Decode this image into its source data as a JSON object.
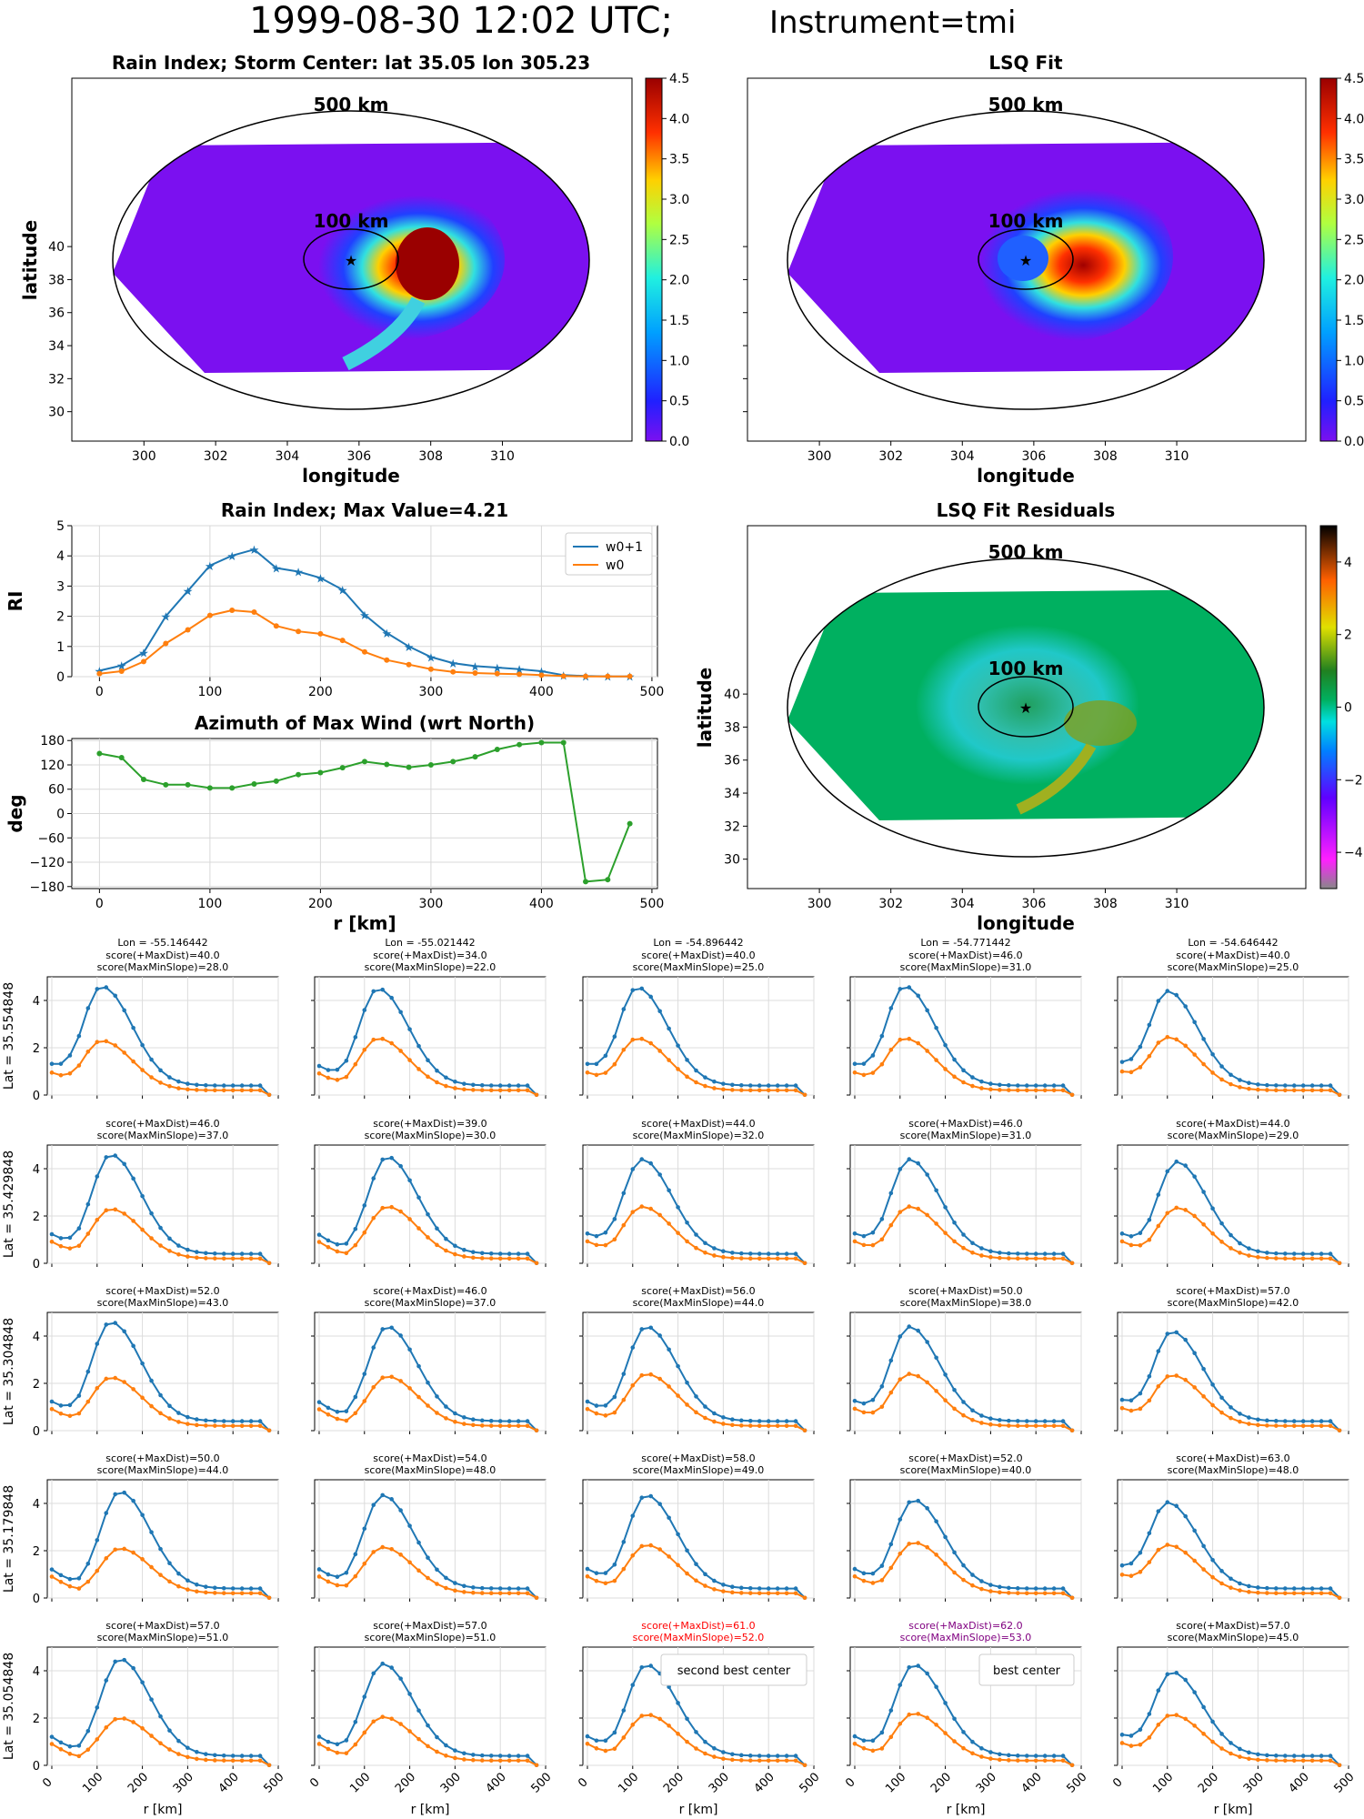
{
  "figure": {
    "title_main": "1999-08-30 12:02 UTC;",
    "title_instrument": "Instrument=tmi"
  },
  "maps": {
    "rain_index": {
      "title": "Rain Index; Storm Center: lat 35.05 lon 305.23",
      "xlabel": "longitude",
      "ylabel": "latitude",
      "colorbar_ticks": [
        "0.0",
        "0.5",
        "1.0",
        "1.5",
        "2.0",
        "2.5",
        "3.0",
        "3.5",
        "4.0",
        "4.5"
      ]
    },
    "lsq_fit": {
      "title": "LSQ Fit",
      "xlabel": "longitude",
      "colorbar_ticks": [
        "0.0",
        "0.5",
        "1.0",
        "1.5",
        "2.0",
        "2.5",
        "3.0",
        "3.5",
        "4.0",
        "4.5"
      ]
    },
    "residuals": {
      "title": "LSQ Fit Residuals",
      "xlabel": "longitude",
      "ylabel": "latitude",
      "colorbar_ticks": [
        "4",
        "2",
        "0",
        "−2",
        "−4"
      ]
    },
    "ring_outer_label": "500 km",
    "ring_inner_label": "100 km",
    "lon_ticks": [
      "300",
      "302",
      "304",
      "306",
      "308",
      "310"
    ],
    "lat_ticks": [
      "30",
      "32",
      "34",
      "36",
      "38",
      "40"
    ]
  },
  "chart_data": [
    {
      "type": "line",
      "title": "Rain Index; Max Value=4.21",
      "xlabel": "",
      "ylabel": "RI",
      "xlim": [
        -25,
        505
      ],
      "ylim": [
        0,
        5
      ],
      "legend_position": "top-right",
      "x": [
        0,
        20,
        40,
        60,
        80,
        100,
        120,
        140,
        160,
        180,
        200,
        220,
        240,
        260,
        280,
        300,
        320,
        340,
        360,
        380,
        400,
        420,
        440,
        460,
        480
      ],
      "series": [
        {
          "name": "w0+1",
          "color": "#1f77b4",
          "marker": "star",
          "values": [
            0.2,
            0.37,
            0.8,
            2.0,
            2.84,
            3.68,
            4.01,
            4.21,
            3.6,
            3.48,
            3.27,
            2.88,
            2.05,
            1.45,
            1.0,
            0.65,
            0.45,
            0.35,
            0.3,
            0.25,
            0.18,
            0.05,
            0.02,
            0.01,
            0.01
          ]
        },
        {
          "name": "w0",
          "color": "#ff7f0e",
          "marker": "dot",
          "values": [
            0.1,
            0.18,
            0.5,
            1.1,
            1.55,
            2.03,
            2.2,
            2.14,
            1.68,
            1.5,
            1.42,
            1.2,
            0.82,
            0.55,
            0.4,
            0.25,
            0.16,
            0.12,
            0.1,
            0.08,
            0.05,
            0.02,
            0.01,
            0.01,
            0.01
          ]
        }
      ],
      "xticks": [
        "0",
        "100",
        "200",
        "300",
        "400",
        "500"
      ],
      "yticks": [
        "0",
        "1",
        "2",
        "3",
        "4",
        "5"
      ]
    },
    {
      "type": "line",
      "title": "Azimuth of Max Wind (wrt North)",
      "xlabel": "r [km]",
      "ylabel": "deg",
      "xlim": [
        -25,
        505
      ],
      "ylim": [
        -185,
        185
      ],
      "x": [
        0,
        20,
        40,
        60,
        80,
        100,
        120,
        140,
        160,
        180,
        200,
        220,
        240,
        260,
        280,
        300,
        320,
        340,
        360,
        380,
        400,
        420,
        440,
        460,
        480
      ],
      "series": [
        {
          "name": "",
          "color": "#2ca02c",
          "values": [
            148,
            138,
            84,
            71,
            71,
            63,
            63,
            73,
            80,
            96,
            101,
            113,
            128,
            121,
            114,
            120,
            128,
            140,
            158,
            170,
            175,
            175,
            -168,
            -163,
            -25
          ]
        }
      ],
      "xticks": [
        "0",
        "100",
        "200",
        "300",
        "400",
        "500"
      ],
      "yticks": [
        "180",
        "120",
        "60",
        "0",
        "−60",
        "−120",
        "−180"
      ]
    },
    {
      "type": "line",
      "small_multiples": true,
      "xlabel": "r [km]",
      "xlim": [
        -10,
        500
      ],
      "ylim": [
        0,
        5
      ],
      "xticks": [
        "0",
        "100",
        "200",
        "300",
        "400",
        "500"
      ],
      "yticks": [
        "0",
        "2",
        "4"
      ],
      "x": [
        0,
        20,
        40,
        60,
        80,
        100,
        120,
        140,
        160,
        180,
        200,
        220,
        240,
        260,
        280,
        300,
        320,
        340,
        360,
        380,
        400,
        420,
        440,
        460,
        480
      ],
      "col_lon_labels": [
        "Lon = -55.146442",
        "Lon = -55.021442",
        "Lon = -54.896442",
        "Lon = -54.771442",
        "Lon = -54.646442"
      ],
      "row_lat_labels": [
        "Lat = 35.554848",
        "Lat = 35.429848",
        "Lat = 35.304848",
        "Lat = 35.179848",
        "Lat = 35.054848"
      ],
      "panels": [
        {
          "row": 0,
          "col": 0,
          "score_maxdist": "score(+MaxDist)=40.0",
          "score_slope": "score(MaxMinSlope)=28.0",
          "peak_r": 110,
          "peak_blue": 4.6,
          "peak_orange": 2.3
        },
        {
          "row": 0,
          "col": 1,
          "score_maxdist": "score(+MaxDist)=34.0",
          "score_slope": "score(MaxMinSlope)=22.0",
          "peak_r": 130,
          "peak_blue": 4.5,
          "peak_orange": 2.4
        },
        {
          "row": 0,
          "col": 2,
          "score_maxdist": "score(+MaxDist)=40.0",
          "score_slope": "score(MaxMinSlope)=25.0",
          "peak_r": 110,
          "peak_blue": 4.55,
          "peak_orange": 2.4
        },
        {
          "row": 0,
          "col": 3,
          "score_maxdist": "score(+MaxDist)=46.0",
          "score_slope": "score(MaxMinSlope)=31.0",
          "peak_r": 110,
          "peak_blue": 4.6,
          "peak_orange": 2.4
        },
        {
          "row": 0,
          "col": 4,
          "score_maxdist": "score(+MaxDist)=40.0",
          "score_slope": "score(MaxMinSlope)=25.0",
          "peak_r": 100,
          "peak_blue": 4.4,
          "peak_orange": 2.45
        },
        {
          "row": 1,
          "col": 0,
          "score_maxdist": "score(+MaxDist)=46.0",
          "score_slope": "score(MaxMinSlope)=37.0",
          "peak_r": 130,
          "peak_blue": 4.6,
          "peak_orange": 2.3
        },
        {
          "row": 1,
          "col": 1,
          "score_maxdist": "score(+MaxDist)=39.0",
          "score_slope": "score(MaxMinSlope)=30.0",
          "peak_r": 150,
          "peak_blue": 4.5,
          "peak_orange": 2.4
        },
        {
          "row": 1,
          "col": 2,
          "score_maxdist": "score(+MaxDist)=44.0",
          "score_slope": "score(MaxMinSlope)=32.0",
          "peak_r": 120,
          "peak_blue": 4.4,
          "peak_orange": 2.4
        },
        {
          "row": 1,
          "col": 3,
          "score_maxdist": "score(+MaxDist)=46.0",
          "score_slope": "score(MaxMinSlope)=31.0",
          "peak_r": 120,
          "peak_blue": 4.4,
          "peak_orange": 2.4
        },
        {
          "row": 1,
          "col": 4,
          "score_maxdist": "score(+MaxDist)=44.0",
          "score_slope": "score(MaxMinSlope)=29.0",
          "peak_r": 120,
          "peak_blue": 4.3,
          "peak_orange": 2.35
        },
        {
          "row": 2,
          "col": 0,
          "score_maxdist": "score(+MaxDist)=52.0",
          "score_slope": "score(MaxMinSlope)=43.0",
          "peak_r": 130,
          "peak_blue": 4.6,
          "peak_orange": 2.25
        },
        {
          "row": 2,
          "col": 1,
          "score_maxdist": "score(+MaxDist)=46.0",
          "score_slope": "score(MaxMinSlope)=37.0",
          "peak_r": 150,
          "peak_blue": 4.4,
          "peak_orange": 2.3
        },
        {
          "row": 2,
          "col": 2,
          "score_maxdist": "score(+MaxDist)=56.0",
          "score_slope": "score(MaxMinSlope)=44.0",
          "peak_r": 130,
          "peak_blue": 4.4,
          "peak_orange": 2.4
        },
        {
          "row": 2,
          "col": 3,
          "score_maxdist": "score(+MaxDist)=50.0",
          "score_slope": "score(MaxMinSlope)=38.0",
          "peak_r": 120,
          "peak_blue": 4.4,
          "peak_orange": 2.4
        },
        {
          "row": 2,
          "col": 4,
          "score_maxdist": "score(+MaxDist)=57.0",
          "score_slope": "score(MaxMinSlope)=42.0",
          "peak_r": 110,
          "peak_blue": 4.2,
          "peak_orange": 2.35
        },
        {
          "row": 3,
          "col": 0,
          "score_maxdist": "score(+MaxDist)=50.0",
          "score_slope": "score(MaxMinSlope)=44.0",
          "peak_r": 150,
          "peak_blue": 4.5,
          "peak_orange": 2.1
        },
        {
          "row": 3,
          "col": 1,
          "score_maxdist": "score(+MaxDist)=54.0",
          "score_slope": "score(MaxMinSlope)=48.0",
          "peak_r": 140,
          "peak_blue": 4.35,
          "peak_orange": 2.15
        },
        {
          "row": 3,
          "col": 2,
          "score_maxdist": "score(+MaxDist)=58.0",
          "score_slope": "score(MaxMinSlope)=49.0",
          "peak_r": 130,
          "peak_blue": 4.35,
          "peak_orange": 2.25
        },
        {
          "row": 3,
          "col": 3,
          "score_maxdist": "score(+MaxDist)=52.0",
          "score_slope": "score(MaxMinSlope)=40.0",
          "peak_r": 130,
          "peak_blue": 4.15,
          "peak_orange": 2.35
        },
        {
          "row": 3,
          "col": 4,
          "score_maxdist": "score(+MaxDist)=63.0",
          "score_slope": "score(MaxMinSlope)=48.0",
          "peak_r": 100,
          "peak_blue": 4.05,
          "peak_orange": 2.25
        },
        {
          "row": 4,
          "col": 0,
          "score_maxdist": "score(+MaxDist)=57.0",
          "score_slope": "score(MaxMinSlope)=51.0",
          "peak_r": 150,
          "peak_blue": 4.5,
          "peak_orange": 2.0
        },
        {
          "row": 4,
          "col": 1,
          "score_maxdist": "score(+MaxDist)=57.0",
          "score_slope": "score(MaxMinSlope)=51.0",
          "peak_r": 140,
          "peak_blue": 4.3,
          "peak_orange": 2.05
        },
        {
          "row": 4,
          "col": 2,
          "score_maxdist": "score(+MaxDist)=61.0",
          "score_slope": "score(MaxMinSlope)=52.0",
          "peak_r": 130,
          "peak_blue": 4.25,
          "peak_orange": 2.15,
          "label_color": "#ff0000",
          "annotation": "second best center"
        },
        {
          "row": 4,
          "col": 3,
          "score_maxdist": "score(+MaxDist)=62.0",
          "score_slope": "score(MaxMinSlope)=53.0",
          "peak_r": 130,
          "peak_blue": 4.25,
          "peak_orange": 2.2,
          "label_color": "#800080",
          "annotation": "best center"
        },
        {
          "row": 4,
          "col": 4,
          "score_maxdist": "score(+MaxDist)=57.0",
          "score_slope": "score(MaxMinSlope)=45.0",
          "peak_r": 110,
          "peak_blue": 3.95,
          "peak_orange": 2.15
        }
      ]
    }
  ]
}
